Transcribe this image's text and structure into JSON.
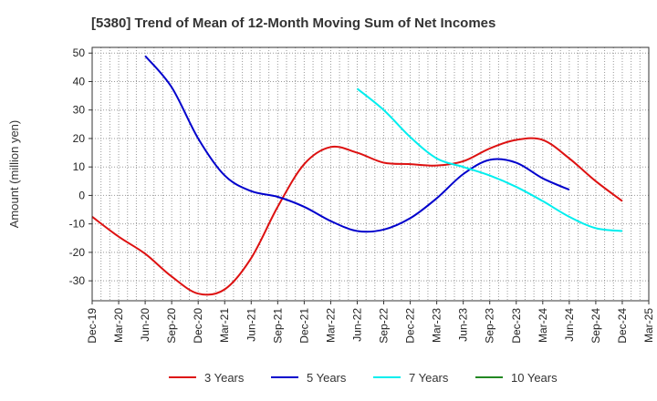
{
  "chart_data": {
    "type": "line",
    "title": "[5380]  Trend of Mean of 12-Month Moving Sum of Net Incomes",
    "xlabel": "",
    "ylabel": "Amount (million yen)",
    "ylim": [
      -37,
      52
    ],
    "yticks": [
      50,
      40,
      30,
      20,
      10,
      0,
      -10,
      -20,
      -30
    ],
    "x_ticks": [
      "Dec-19",
      "Mar-20",
      "Jun-20",
      "Sep-20",
      "Dec-20",
      "Mar-21",
      "Jun-21",
      "Sep-21",
      "Dec-21",
      "Mar-22",
      "Jun-22",
      "Sep-22",
      "Dec-22",
      "Mar-23",
      "Jun-23",
      "Sep-23",
      "Dec-23",
      "Mar-24",
      "Jun-24",
      "Sep-24",
      "Dec-24",
      "Mar-25"
    ],
    "grid": true,
    "legend_position": "bottom",
    "series": [
      {
        "name": "3 Years",
        "color": "#dd1111",
        "points": [
          [
            "Dec-19",
            -7.5
          ],
          [
            "Mar-20",
            -14.5
          ],
          [
            "Jun-20",
            -20.5
          ],
          [
            "Sep-20",
            -28.5
          ],
          [
            "Dec-20",
            -34.5
          ],
          [
            "Mar-21",
            -33
          ],
          [
            "Jun-21",
            -22
          ],
          [
            "Sep-21",
            -4
          ],
          [
            "Dec-21",
            11
          ],
          [
            "Mar-22",
            17
          ],
          [
            "Jun-22",
            15
          ],
          [
            "Sep-22",
            11.5
          ],
          [
            "Dec-22",
            11
          ],
          [
            "Mar-23",
            10.5
          ],
          [
            "Jun-23",
            12
          ],
          [
            "Sep-23",
            16.5
          ],
          [
            "Dec-23",
            19.5
          ],
          [
            "Mar-24",
            19.5
          ],
          [
            "Jun-24",
            13
          ],
          [
            "Sep-24",
            5
          ],
          [
            "Dec-24",
            -2
          ]
        ]
      },
      {
        "name": "5 Years",
        "color": "#0000cc",
        "points": [
          [
            "Jun-20",
            49
          ],
          [
            "Sep-20",
            38
          ],
          [
            "Dec-20",
            20
          ],
          [
            "Mar-21",
            7
          ],
          [
            "Jun-21",
            1.5
          ],
          [
            "Sep-21",
            -0.5
          ],
          [
            "Dec-21",
            -4
          ],
          [
            "Mar-22",
            -9
          ],
          [
            "Jun-22",
            -12.5
          ],
          [
            "Sep-22",
            -12
          ],
          [
            "Dec-22",
            -8
          ],
          [
            "Mar-23",
            -1
          ],
          [
            "Jun-23",
            7.5
          ],
          [
            "Sep-23",
            12.5
          ],
          [
            "Dec-23",
            11.5
          ],
          [
            "Mar-24",
            6
          ],
          [
            "Jun-24",
            2
          ]
        ]
      },
      {
        "name": "7 Years",
        "color": "#00eeee",
        "points": [
          [
            "Jun-22",
            37.5
          ],
          [
            "Sep-22",
            30
          ],
          [
            "Dec-22",
            20.5
          ],
          [
            "Mar-23",
            13
          ],
          [
            "Jun-23",
            10
          ],
          [
            "Sep-23",
            7
          ],
          [
            "Dec-23",
            3
          ],
          [
            "Mar-24",
            -2
          ],
          [
            "Jun-24",
            -7.5
          ],
          [
            "Sep-24",
            -11.5
          ],
          [
            "Dec-24",
            -12.5
          ]
        ]
      },
      {
        "name": "10 Years",
        "color": "#228822",
        "points": []
      }
    ]
  }
}
